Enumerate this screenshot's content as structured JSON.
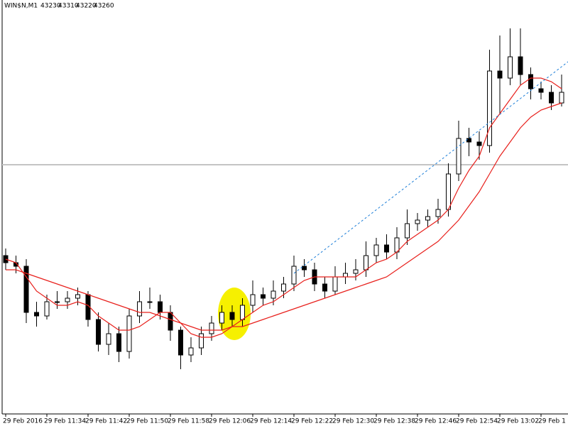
{
  "chart_data": {
    "type": "candlestick",
    "symbol": "WIN$N,M1",
    "ylim": [
      42360,
      43520
    ],
    "xticks": [
      {
        "value": 0,
        "label": "29 Feb 2016"
      },
      {
        "value": 4,
        "label": "29 Feb 11:34"
      },
      {
        "value": 8,
        "label": "29 Feb 11:42"
      },
      {
        "value": 12,
        "label": "29 Feb 11:50"
      },
      {
        "value": 16,
        "label": "29 Feb 11:58"
      },
      {
        "value": 20,
        "label": "29 Feb 12:06"
      },
      {
        "value": 24,
        "label": "29 Feb 12:14"
      },
      {
        "value": 28,
        "label": "29 Feb 12:22"
      },
      {
        "value": 32,
        "label": "29 Feb 12:30"
      },
      {
        "value": 36,
        "label": "29 Feb 12:38"
      },
      {
        "value": 40,
        "label": "29 Feb 12:46"
      },
      {
        "value": 44,
        "label": "29 Feb 12:54"
      },
      {
        "value": 48,
        "label": "29 Feb 13:02"
      },
      {
        "value": 52,
        "label": "29 Feb 1"
      }
    ],
    "open": [
      42800,
      42780,
      42770,
      42640,
      42630,
      42670,
      42670,
      42680,
      42690,
      42620,
      42550,
      42580,
      42530,
      42630,
      42670,
      42670,
      42640,
      42590,
      42520,
      42540,
      42580,
      42610,
      42640,
      42620,
      42660,
      42690,
      42680,
      42700,
      42720,
      42770,
      42760,
      42720,
      42700,
      42740,
      42750,
      42760,
      42800,
      42830,
      42810,
      42850,
      42890,
      42900,
      42910,
      42930,
      43030,
      43130,
      43120,
      43110,
      43320,
      43300,
      43360,
      43310,
      43270,
      43260,
      43230
    ],
    "high": [
      42820,
      42800,
      42790,
      42670,
      42690,
      42700,
      42700,
      42710,
      42700,
      42640,
      42610,
      42600,
      42650,
      42700,
      42710,
      42690,
      42660,
      42600,
      42570,
      42600,
      42630,
      42660,
      42660,
      42680,
      42730,
      42710,
      42730,
      42740,
      42800,
      42790,
      42780,
      42740,
      42770,
      42780,
      42790,
      42840,
      42850,
      42860,
      42880,
      42930,
      42920,
      42930,
      42960,
      43060,
      43180,
      43160,
      43150,
      43380,
      43420,
      43440,
      43440,
      43330,
      43290,
      43280,
      43310
    ],
    "low": [
      42760,
      42750,
      42610,
      42600,
      42620,
      42650,
      42650,
      42660,
      42600,
      42530,
      42520,
      42500,
      42510,
      42610,
      42650,
      42620,
      42560,
      42480,
      42500,
      42520,
      42560,
      42590,
      42600,
      42600,
      42640,
      42660,
      42660,
      42680,
      42700,
      42740,
      42700,
      42680,
      42690,
      42720,
      42730,
      42740,
      42780,
      42790,
      42790,
      42830,
      42870,
      42880,
      42890,
      42910,
      43010,
      43080,
      43070,
      43090,
      43200,
      43280,
      43280,
      43240,
      43240,
      43210,
      43220
    ],
    "close": [
      42780,
      42770,
      42640,
      42630,
      42670,
      42670,
      42680,
      42690,
      42620,
      42550,
      42580,
      42530,
      42630,
      42670,
      42670,
      42640,
      42590,
      42520,
      42540,
      42580,
      42610,
      42640,
      42620,
      42660,
      42690,
      42680,
      42700,
      42720,
      42770,
      42760,
      42720,
      42700,
      42740,
      42750,
      42760,
      42800,
      42830,
      42810,
      42850,
      42890,
      42900,
      42910,
      42930,
      43030,
      43130,
      43120,
      43110,
      43320,
      43300,
      43360,
      43310,
      43270,
      43260,
      43230,
      43260
    ],
    "up_color": "#ffffff",
    "down_color": "#000000",
    "series": [
      {
        "color": "#e8201c",
        "values": [
          42790,
          42780,
          42740,
          42700,
          42680,
          42660,
          42660,
          42670,
          42660,
          42630,
          42610,
          42590,
          42590,
          42600,
          42620,
          42640,
          42640,
          42610,
          42580,
          42570,
          42570,
          42580,
          42600,
          42620,
          42640,
          42660,
          42670,
          42690,
          42710,
          42730,
          42740,
          42740,
          42740,
          42740,
          42740,
          42760,
          42780,
          42790,
          42810,
          42840,
          42860,
          42880,
          42900,
          42930,
          42990,
          43040,
          43080,
          43160,
          43200,
          43240,
          43280,
          43300,
          43300,
          43290,
          43270
        ]
      },
      {
        "color": "#e8201c",
        "values": [
          42760,
          42760,
          42750,
          42740,
          42730,
          42720,
          42710,
          42700,
          42690,
          42680,
          42670,
          42660,
          42650,
          42640,
          42640,
          42630,
          42620,
          42610,
          42600,
          42590,
          42590,
          42590,
          42600,
          42600,
          42610,
          42620,
          42630,
          42640,
          42650,
          42660,
          42670,
          42680,
          42690,
          42700,
          42710,
          42720,
          42730,
          42740,
          42760,
          42780,
          42800,
          42820,
          42840,
          42870,
          42900,
          42940,
          42980,
          43030,
          43080,
          43120,
          43160,
          43190,
          43210,
          43220,
          43230
        ]
      }
    ],
    "hline": {
      "value": 43056,
      "color": "#b0b0b0"
    },
    "trendline": {
      "x": [
        28,
        54.8
      ],
      "values": [
        42750,
        43350
      ],
      "color": "#1e7fd8"
    }
  }
}
